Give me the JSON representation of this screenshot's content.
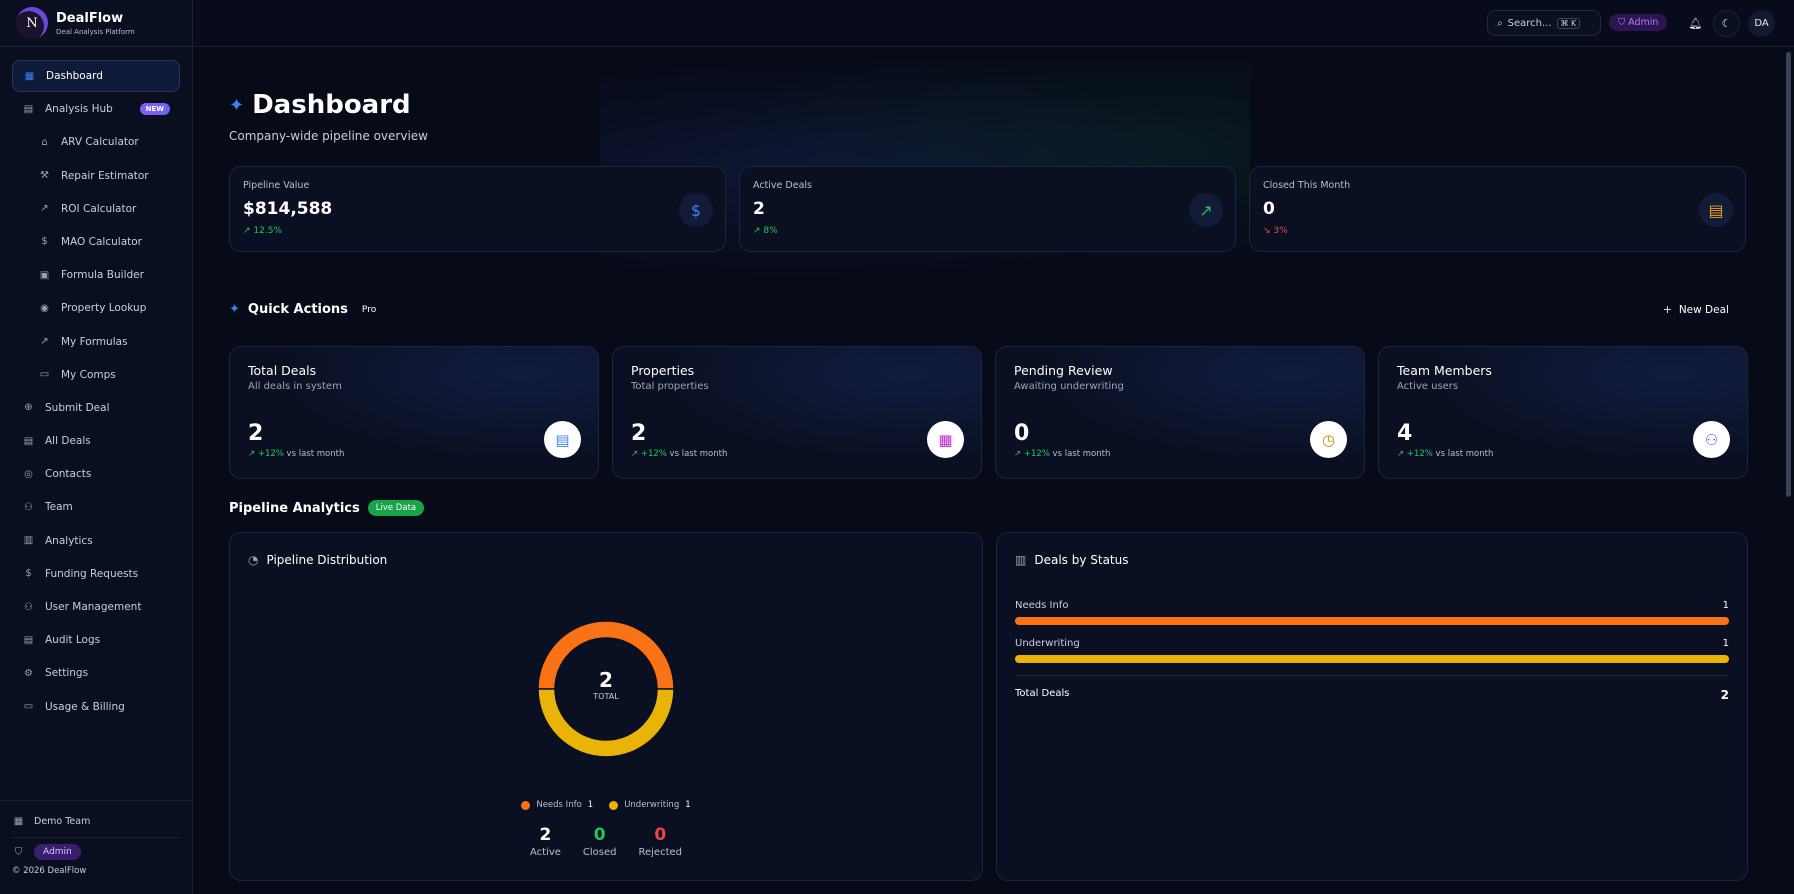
{
  "brand": {
    "name": "DealFlow",
    "tagline": "Deal Analysis Platform",
    "logo_letter": "N"
  },
  "sidebar": {
    "items": [
      {
        "label": "Dashboard",
        "icon": "grid-icon",
        "glyph": "▦",
        "active": true
      },
      {
        "label": "Analysis Hub",
        "icon": "clipboard-icon",
        "glyph": "▤",
        "badge": "NEW"
      },
      {
        "label": "ARV Calculator",
        "icon": "home-icon",
        "glyph": "⌂",
        "sub": true
      },
      {
        "label": "Repair Estimator",
        "icon": "wrench-icon",
        "glyph": "⚒",
        "sub": true
      },
      {
        "label": "ROI Calculator",
        "icon": "trending-up-icon",
        "glyph": "↗",
        "sub": true
      },
      {
        "label": "MAO Calculator",
        "icon": "dollar-icon",
        "glyph": "$",
        "sub": true
      },
      {
        "label": "Formula Builder",
        "icon": "calculator-icon",
        "glyph": "▣",
        "sub": true
      },
      {
        "label": "Property Lookup",
        "icon": "map-pin-icon",
        "glyph": "◉",
        "sub": true
      },
      {
        "label": "My Formulas",
        "icon": "trending-up-icon",
        "glyph": "↗",
        "sub": true
      },
      {
        "label": "My Comps",
        "icon": "database-icon",
        "glyph": "▭",
        "sub": true
      },
      {
        "label": "Submit Deal",
        "icon": "plus-circle-icon",
        "glyph": "⊕"
      },
      {
        "label": "All Deals",
        "icon": "file-icon",
        "glyph": "▤"
      },
      {
        "label": "Contacts",
        "icon": "contact-icon",
        "glyph": "◎"
      },
      {
        "label": "Team",
        "icon": "users-icon",
        "glyph": "⚇"
      },
      {
        "label": "Analytics",
        "icon": "bar-chart-icon",
        "glyph": "▥"
      },
      {
        "label": "Funding Requests",
        "icon": "dollar-icon",
        "glyph": "$"
      },
      {
        "label": "User Management",
        "icon": "users-icon",
        "glyph": "⚇"
      },
      {
        "label": "Audit Logs",
        "icon": "file-icon",
        "glyph": "▤"
      },
      {
        "label": "Settings",
        "icon": "gear-icon",
        "glyph": "⚙"
      },
      {
        "label": "Usage & Billing",
        "icon": "credit-card-icon",
        "glyph": "▭"
      }
    ],
    "footer": {
      "team": "Demo Team",
      "role": "Admin",
      "copyright": "© 2026 DealFlow"
    }
  },
  "header": {
    "search_placeholder": "Search...",
    "shortcut": "⌘ K",
    "role": "Admin",
    "avatar": "DA"
  },
  "page": {
    "title": "Dashboard",
    "subtitle": "Company-wide pipeline overview"
  },
  "stats": [
    {
      "label": "Pipeline Value",
      "value": "$814,588",
      "change": "12.5%",
      "trend": "up",
      "icon": "dollar-icon",
      "glyph": "$",
      "color": "#3b82f6"
    },
    {
      "label": "Active Deals",
      "value": "2",
      "change": "8%",
      "trend": "up",
      "icon": "trending-up-icon",
      "glyph": "↗",
      "color": "#22c55e"
    },
    {
      "label": "Closed This Month",
      "value": "0",
      "change": "3%",
      "trend": "down",
      "icon": "file-icon",
      "glyph": "▤",
      "color": "#f59e0b"
    }
  ],
  "quick_actions": {
    "title": "Quick Actions",
    "badge": "Pro",
    "new_deal": "New Deal",
    "cards": [
      {
        "title": "Total Deals",
        "subtitle": "All deals in system",
        "value": "2",
        "change": "+12%",
        "suffix": "vs last month",
        "icon": "file-icon",
        "glyph": "▤",
        "color": "#3b82f6"
      },
      {
        "title": "Properties",
        "subtitle": "Total properties",
        "value": "2",
        "change": "+12%",
        "suffix": "vs last month",
        "icon": "building-icon",
        "glyph": "▦",
        "color": "#c026d3"
      },
      {
        "title": "Pending Review",
        "subtitle": "Awaiting underwriting",
        "value": "0",
        "change": "+12%",
        "suffix": "vs last month",
        "icon": "clock-icon",
        "glyph": "◷",
        "color": "#ca8a04"
      },
      {
        "title": "Team Members",
        "subtitle": "Active users",
        "value": "4",
        "change": "+12%",
        "suffix": "vs last month",
        "icon": "users-icon",
        "glyph": "⚇",
        "color": "#6366f1"
      }
    ]
  },
  "analytics": {
    "title": "Pipeline Analytics",
    "badge": "Live Data",
    "distribution": {
      "title": "Pipeline Distribution",
      "total": "2",
      "total_label": "TOTAL",
      "segments": [
        {
          "label": "Needs Info",
          "value": 1,
          "color": "#f97316"
        },
        {
          "label": "Underwriting",
          "value": 1,
          "color": "#eab308"
        }
      ],
      "summary": [
        {
          "value": "2",
          "label": "Active",
          "color": "#ffffff"
        },
        {
          "value": "0",
          "label": "Closed",
          "color": "#22c55e"
        },
        {
          "value": "0",
          "label": "Rejected",
          "color": "#ef4444"
        }
      ]
    },
    "by_status": {
      "title": "Deals by Status",
      "rows": [
        {
          "label": "Needs Info",
          "value": 1,
          "fraction": 1.0,
          "color": "#f97316"
        },
        {
          "label": "Underwriting",
          "value": 1,
          "fraction": 1.0,
          "color": "#eab308"
        }
      ],
      "total_label": "Total Deals",
      "total": "2"
    }
  }
}
